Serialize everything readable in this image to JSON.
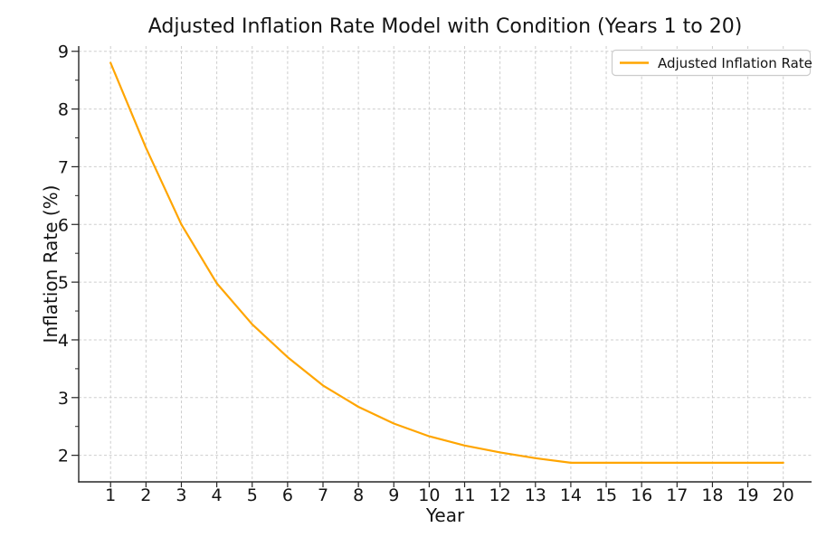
{
  "chart_data": {
    "type": "line",
    "title": "Adjusted Inflation Rate Model with Condition (Years 1 to 20)",
    "xlabel": "Year",
    "ylabel": "Inflation Rate (%)",
    "x": [
      1,
      2,
      3,
      4,
      5,
      6,
      7,
      8,
      9,
      10,
      11,
      12,
      13,
      14,
      15,
      16,
      17,
      18,
      19,
      20
    ],
    "series": [
      {
        "name": "Adjusted Inflation Rate",
        "color": "#FFA500",
        "values": [
          8.8,
          7.33,
          6.0,
          4.98,
          4.27,
          3.7,
          3.21,
          2.84,
          2.55,
          2.33,
          2.17,
          2.05,
          1.95,
          1.87,
          1.87,
          1.87,
          1.87,
          1.87,
          1.87,
          1.87
        ]
      }
    ],
    "xticks": [
      1,
      2,
      3,
      4,
      5,
      6,
      7,
      8,
      9,
      10,
      11,
      12,
      13,
      14,
      15,
      16,
      17,
      18,
      19,
      20
    ],
    "yticks": [
      2,
      3,
      4,
      5,
      6,
      7,
      8,
      9
    ],
    "y_minor_ticks": [
      2.5,
      3.5,
      4.5,
      5.5,
      6.5,
      7.5,
      8.5
    ],
    "xlim": [
      0.1,
      20.8
    ],
    "ylim": [
      1.54,
      9.09
    ],
    "grid": "dashed",
    "legend_position": "upper-right"
  },
  "colors": {
    "line": "#FFA500",
    "grid": "#cdcdcd",
    "axis": "#262626",
    "text": "#141414",
    "background": "#ffffff",
    "legend_border": "#cccccc",
    "legend_background": "#ffffff"
  }
}
